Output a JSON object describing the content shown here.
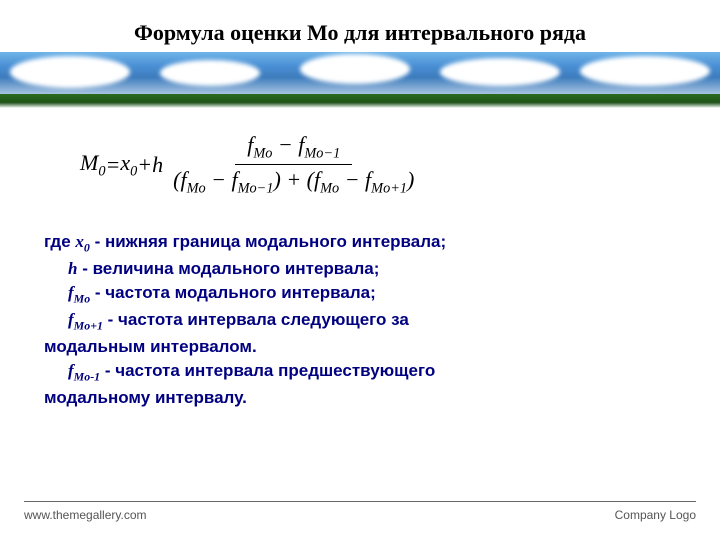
{
  "title": "Формула оценки Мо для интервального ряда",
  "formula": {
    "lhs": "M",
    "lhs_sub": "0",
    "eq": " = ",
    "x": "x",
    "x_sub": "0",
    "plus": " + ",
    "h": "h",
    "num_a": "f",
    "num_a_sub": "Mo",
    "num_minus": " − ",
    "num_b": "f",
    "num_b_sub": "Mo−1",
    "den_l1a": "f",
    "den_l1a_sub": "Mo",
    "den_l1_minus": " − ",
    "den_l1b": "f",
    "den_l1b_sub": "Mo−1",
    "den_plus": " + ",
    "den_l2a": "f",
    "den_l2a_sub": "Mo",
    "den_l2_minus": " − ",
    "den_l2b": "f",
    "den_l2b_sub": "Mo+1"
  },
  "defs": {
    "where": "где  ",
    "x0_var": "x",
    "x0_sub": "0",
    "x0_text": "  - нижняя граница модального интервала;",
    "h_var": "h",
    "h_text": " - величина модального интервала;",
    "fmo_var": "f",
    "fmo_sub": "Mo",
    "fmo_text": " - частота модального интервала;",
    "fmo1_var": "f",
    "fmo1_sub": "Mo+1",
    "fmo1_text": " - частота интервала следующего за",
    "fmo1_text2": "модальным интервалом.",
    "fmom1_var": "f",
    "fmom1_sub": "Mo-1",
    "fmom1_text": " - частота интервала предшествующего",
    "fmom1_text2": "модальному   интервалу."
  },
  "footer": {
    "left": "www.themegallery.com",
    "right": "Company Logo"
  },
  "colors": {
    "title": "#000000",
    "definitions": "#000080",
    "footer": "#555555"
  }
}
